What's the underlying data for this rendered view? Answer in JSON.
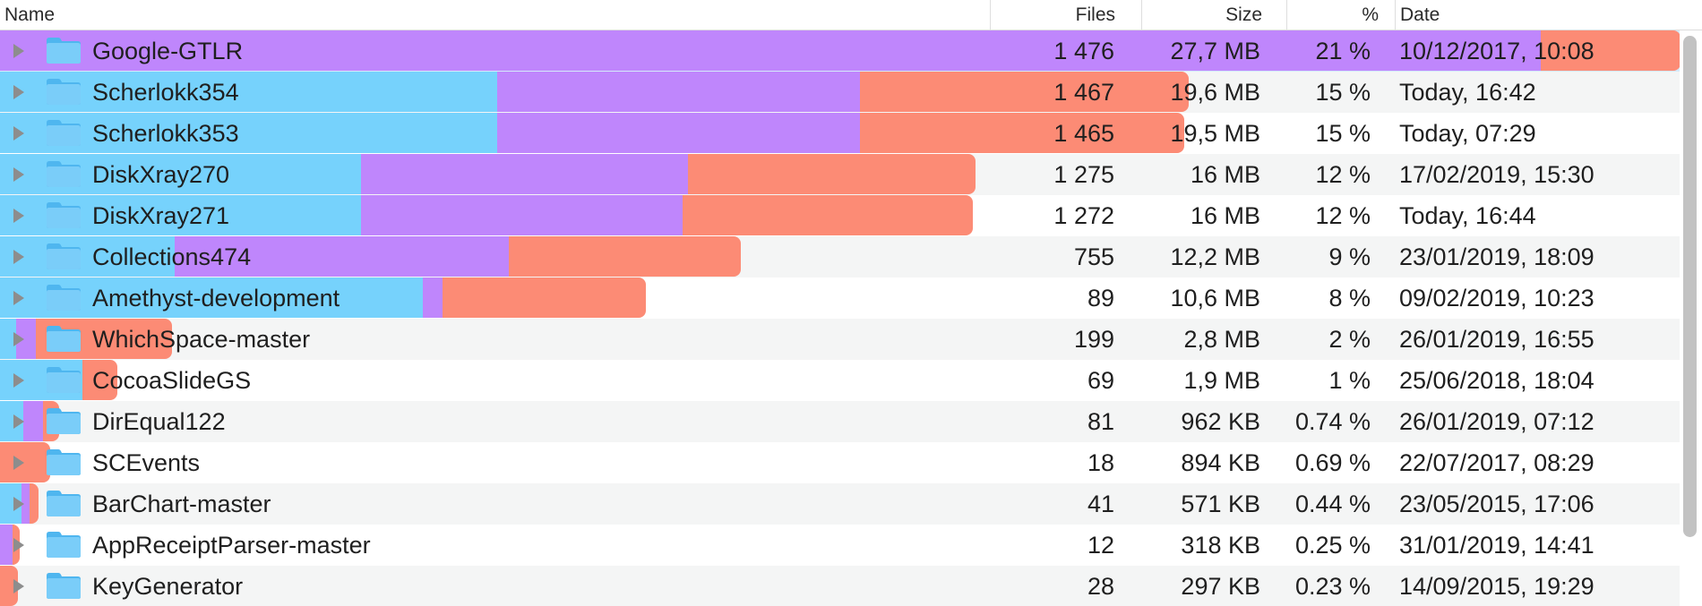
{
  "columns": {
    "name": "Name",
    "files": "Files",
    "size": "Size",
    "percent": "%",
    "date": "Date"
  },
  "colors": {
    "blue": "#76d2fc",
    "purple": "#bf86fc",
    "red": "#fc8b75",
    "folder": "#6cc6f7",
    "selection": "#d4eafa"
  },
  "rows": [
    {
      "name": "Google-GTLR",
      "files": "1 476",
      "size": "27,7 MB",
      "percent": "21 %",
      "date": "10/12/2017, 10:08",
      "selected": true
    },
    {
      "name": "Scherlokk354",
      "files": "1 467",
      "size": "19,6 MB",
      "percent": "15 %",
      "date": "Today, 16:42"
    },
    {
      "name": "Scherlokk353",
      "files": "1 465",
      "size": "19,5 MB",
      "percent": "15 %",
      "date": "Today, 07:29"
    },
    {
      "name": "DiskXray270",
      "files": "1 275",
      "size": "16 MB",
      "percent": "12 %",
      "date": "17/02/2019, 15:30"
    },
    {
      "name": "DiskXray271",
      "files": "1 272",
      "size": "16 MB",
      "percent": "12 %",
      "date": "Today, 16:44"
    },
    {
      "name": "Collections474",
      "files": "755",
      "size": "12,2 MB",
      "percent": "9 %",
      "date": "23/01/2019, 18:09"
    },
    {
      "name": "Amethyst-development",
      "files": "89",
      "size": "10,6 MB",
      "percent": "8 %",
      "date": "09/02/2019, 10:23"
    },
    {
      "name": "WhichSpace-master",
      "files": "199",
      "size": "2,8 MB",
      "percent": "2 %",
      "date": "26/01/2019, 16:55"
    },
    {
      "name": "CocoaSlideGS",
      "files": "69",
      "size": "1,9 MB",
      "percent": "1 %",
      "date": "25/06/2018, 18:04"
    },
    {
      "name": "DirEqual122",
      "files": "81",
      "size": "962 KB",
      "percent": "0.74 %",
      "date": "26/01/2019, 07:12"
    },
    {
      "name": "SCEvents",
      "files": "18",
      "size": "894 KB",
      "percent": "0.69 %",
      "date": "22/07/2017, 08:29"
    },
    {
      "name": "BarChart-master",
      "files": "41",
      "size": "571 KB",
      "percent": "0.44 %",
      "date": "23/05/2015, 17:06"
    },
    {
      "name": "AppReceiptParser-master",
      "files": "12",
      "size": "318 KB",
      "percent": "0.25 %",
      "date": "31/01/2019, 14:41"
    },
    {
      "name": "KeyGenerator",
      "files": "28",
      "size": "297 KB",
      "percent": "0.23 %",
      "date": "14/09/2015, 19:29"
    }
  ]
}
